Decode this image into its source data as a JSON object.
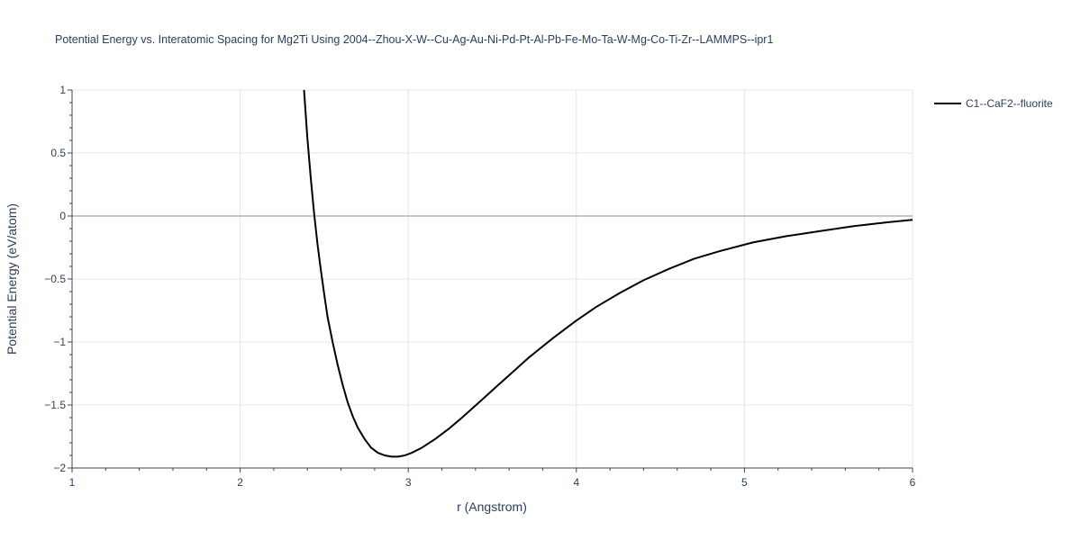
{
  "chart_data": {
    "type": "line",
    "title": "Potential Energy vs. Interatomic Spacing for Mg2Ti Using 2004--Zhou-X-W--Cu-Ag-Au-Ni-Pd-Pt-Al-Pb-Fe-Mo-Ta-W-Mg-Co-Ti-Zr--LAMMPS--ipr1",
    "xlabel": "r (Angstrom)",
    "ylabel": "Potential Energy (eV/atom)",
    "xlim": [
      1,
      6
    ],
    "ylim": [
      -2,
      1
    ],
    "x_ticks": [
      1,
      2,
      3,
      4,
      5,
      6
    ],
    "x_tick_labels": [
      "1",
      "2",
      "3",
      "4",
      "5",
      "6"
    ],
    "y_ticks": [
      -2,
      -1.5,
      -1,
      -0.5,
      0,
      0.5,
      1
    ],
    "y_tick_labels": [
      "−2",
      "−1.5",
      "−1",
      "−0.5",
      "0",
      "0.5",
      "1"
    ],
    "grid": true,
    "legend_position": "top-right",
    "series": [
      {
        "name": "C1--CaF2--fluorite",
        "color": "#000000",
        "x": [
          2.38,
          2.4,
          2.42,
          2.44,
          2.46,
          2.48,
          2.5,
          2.52,
          2.55,
          2.58,
          2.61,
          2.64,
          2.67,
          2.7,
          2.74,
          2.78,
          2.82,
          2.86,
          2.9,
          2.94,
          2.98,
          3.02,
          3.08,
          3.16,
          3.24,
          3.32,
          3.42,
          3.52,
          3.62,
          3.72,
          3.86,
          4.0,
          4.12,
          4.26,
          4.4,
          4.55,
          4.7,
          4.85,
          5.05,
          5.25,
          5.45,
          5.65,
          5.85,
          6.0
        ],
        "y": [
          1.0,
          0.62,
          0.3,
          0.02,
          -0.22,
          -0.43,
          -0.62,
          -0.8,
          -1.0,
          -1.18,
          -1.34,
          -1.48,
          -1.59,
          -1.68,
          -1.77,
          -1.84,
          -1.88,
          -1.9,
          -1.91,
          -1.91,
          -1.9,
          -1.88,
          -1.84,
          -1.77,
          -1.69,
          -1.6,
          -1.48,
          -1.36,
          -1.24,
          -1.12,
          -0.97,
          -0.83,
          -0.72,
          -0.61,
          -0.51,
          -0.42,
          -0.34,
          -0.28,
          -0.21,
          -0.16,
          -0.12,
          -0.08,
          -0.05,
          -0.03
        ]
      }
    ]
  }
}
